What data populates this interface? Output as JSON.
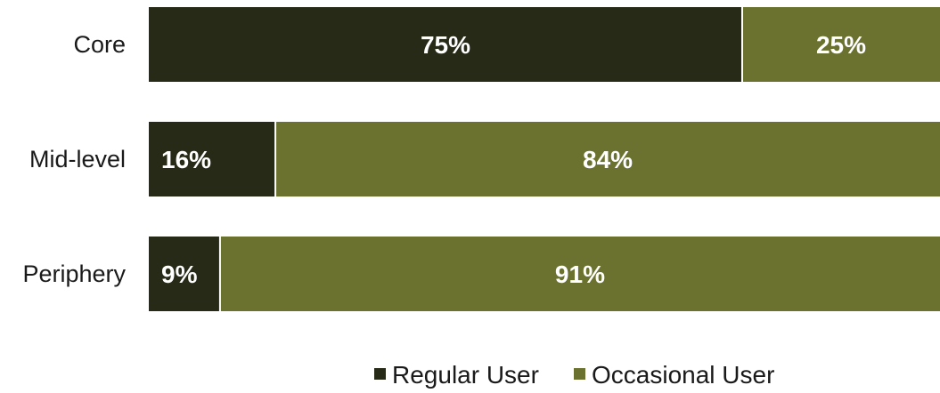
{
  "chart_data": {
    "type": "bar",
    "orientation": "horizontal",
    "stacked": true,
    "percent_stacked": true,
    "categories": [
      "Core",
      "Mid-level",
      "Periphery"
    ],
    "series": [
      {
        "name": "Regular User",
        "values": [
          75,
          16,
          9
        ],
        "color": "#262a17"
      },
      {
        "name": "Occasional User",
        "values": [
          25,
          84,
          91
        ],
        "color": "#6b712e"
      }
    ],
    "data_labels": [
      [
        "75%",
        "25%"
      ],
      [
        "16%",
        "84%"
      ],
      [
        "9%",
        "91%"
      ]
    ],
    "xlim": [
      0,
      100
    ],
    "grid": false,
    "legend_position": "bottom-center"
  }
}
